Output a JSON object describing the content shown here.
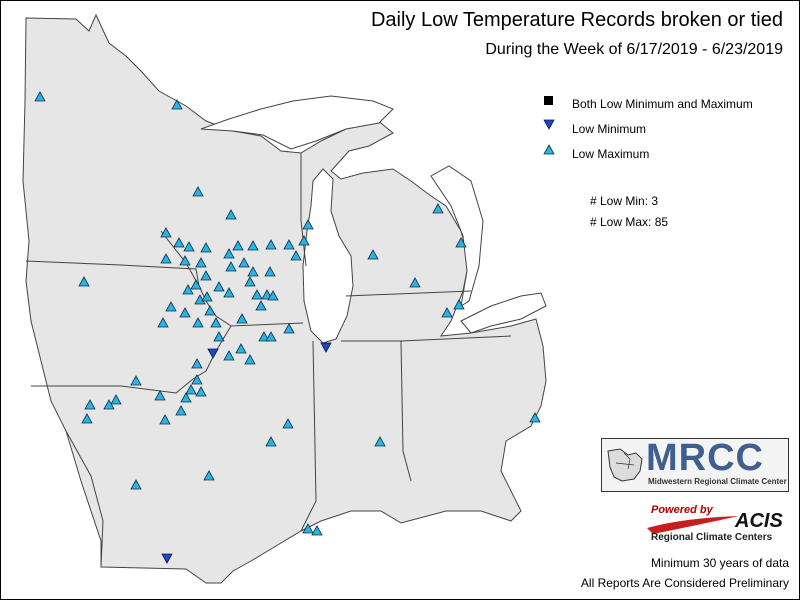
{
  "title": "Daily Low Temperature Records broken or tied",
  "subtitle": "During the Week of 6/17/2019 - 6/23/2019",
  "legend": {
    "both": "Both Low Minimum and Maximum",
    "low_min": "Low Minimum",
    "low_max": "Low Maximum"
  },
  "counts": {
    "low_min": "# Low Min: 3",
    "low_max": "# Low Max: 85"
  },
  "logos": {
    "mrcc_word": "MRCC",
    "mrcc_sub": "Midwestern Regional Climate Center",
    "powered_by": "Powered by",
    "acis": "ACIS",
    "rcc": "Regional Climate Centers"
  },
  "footer": {
    "min_years": "Minimum 30 years of data",
    "preliminary": "All Reports Are Considered Preliminary"
  },
  "colors": {
    "land": "#e6e6e6",
    "low_max_fill": "#28b4e6",
    "low_min_fill": "#1e46c8",
    "both_fill": "#000000"
  }
}
